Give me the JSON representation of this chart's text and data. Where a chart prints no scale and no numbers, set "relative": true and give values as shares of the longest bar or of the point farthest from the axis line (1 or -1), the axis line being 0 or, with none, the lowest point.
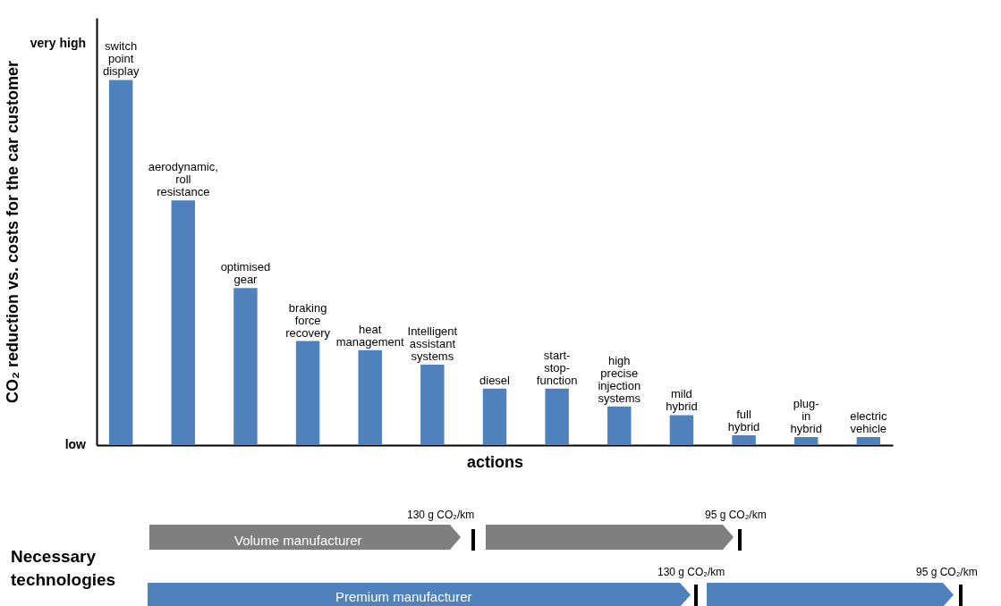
{
  "chart_data": {
    "type": "bar",
    "relative": true,
    "color": "#4f81bd",
    "categories": [
      "switch point display",
      "aerodynamic, roll resistance",
      "optimised gear",
      "braking force recovery",
      "heat management",
      "Intelligent assistant systems",
      "diesel",
      "start-stop-function",
      "high precise injection systems",
      "mild hybrid",
      "full hybrid",
      "plug-in hybrid",
      "electric vehicle"
    ],
    "values": [
      1,
      0.67,
      0.43,
      0.285,
      0.26,
      0.22,
      0.155,
      0.155,
      0.106,
      0.082,
      0.027,
      0.022,
      0.022
    ],
    "xlabel": "actions",
    "ylabel": "CO₂ reduction vs. costs for the car customer",
    "annotations": [
      "very high",
      "low",
      "Necessary technologies",
      "Volume manufacturer",
      "130 g CO₂/km",
      "95 g CO₂/km",
      "Premium manufacturer",
      "130 g CO₂/km",
      "95 g CO₂/km"
    ],
    "grid": false
  }
}
